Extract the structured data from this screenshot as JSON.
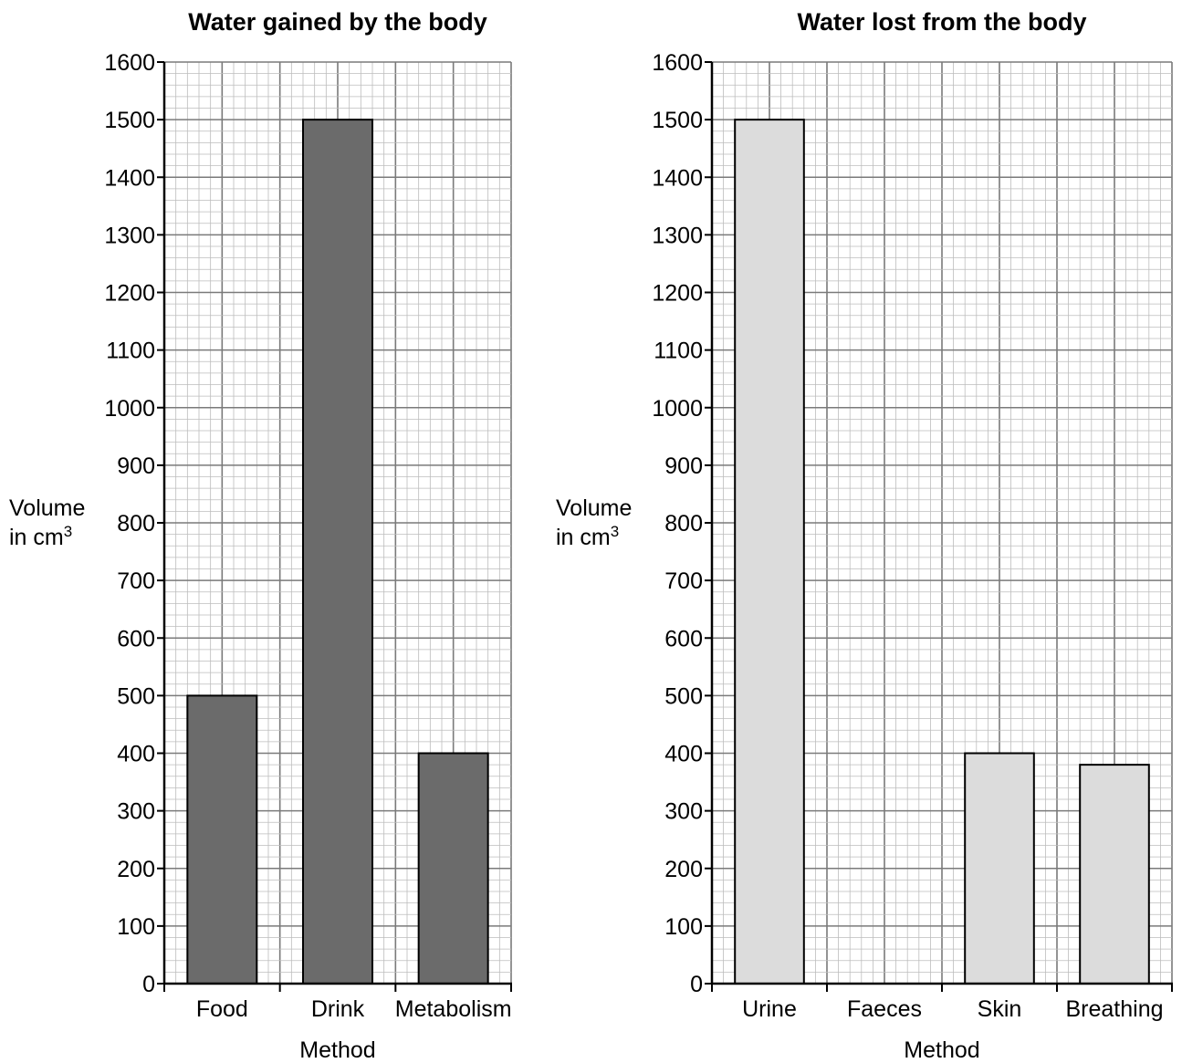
{
  "chart_data": [
    {
      "type": "bar",
      "title": "Water gained by the body",
      "xlabel": "Method",
      "ylabel_line1": "Volume",
      "ylabel_line2": "in cm",
      "ylabel_sup": "3",
      "categories": [
        "Food",
        "Drink",
        "Metabolism"
      ],
      "values": [
        500,
        1500,
        400
      ],
      "ylim": [
        0,
        1600
      ],
      "yticks": [
        0,
        100,
        200,
        300,
        400,
        500,
        600,
        700,
        800,
        900,
        1000,
        1100,
        1200,
        1300,
        1400,
        1500,
        1600
      ],
      "grid": true,
      "bar_color": "#6b6b6b"
    },
    {
      "type": "bar",
      "title": "Water lost from the body",
      "xlabel": "Method",
      "ylabel_line1": "Volume",
      "ylabel_line2": "in cm",
      "ylabel_sup": "3",
      "categories": [
        "Urine",
        "Faeces",
        "Skin",
        "Breathing"
      ],
      "values": [
        1500,
        0,
        400,
        380
      ],
      "ylim": [
        0,
        1600
      ],
      "yticks": [
        0,
        100,
        200,
        300,
        400,
        500,
        600,
        700,
        800,
        900,
        1000,
        1100,
        1200,
        1300,
        1400,
        1500,
        1600
      ],
      "grid": true,
      "bar_color": "#dcdcdc"
    }
  ]
}
